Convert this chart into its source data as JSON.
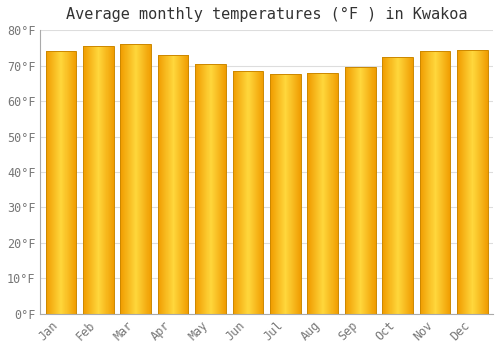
{
  "title": "Average monthly temperatures (°F ) in Kwakoa",
  "months": [
    "Jan",
    "Feb",
    "Mar",
    "Apr",
    "May",
    "Jun",
    "Jul",
    "Aug",
    "Sep",
    "Oct",
    "Nov",
    "Dec"
  ],
  "values": [
    74,
    75.5,
    76,
    73,
    70.5,
    68.5,
    67.5,
    68,
    69.5,
    72.5,
    74,
    74.5
  ],
  "ylim": [
    0,
    80
  ],
  "yticks": [
    0,
    10,
    20,
    30,
    40,
    50,
    60,
    70,
    80
  ],
  "ytick_labels": [
    "0°F",
    "10°F",
    "20°F",
    "30°F",
    "40°F",
    "50°F",
    "60°F",
    "70°F",
    "80°F"
  ],
  "bar_color_center": "#FFD966",
  "bar_color_edge": "#F0A500",
  "bar_edge_color": "#CC8800",
  "background_color": "#FFFFFF",
  "plot_bg_color": "#FFFFFF",
  "grid_color": "#DDDDDD",
  "title_fontsize": 11,
  "tick_fontsize": 8.5,
  "font_family": "monospace",
  "bar_width": 0.82
}
